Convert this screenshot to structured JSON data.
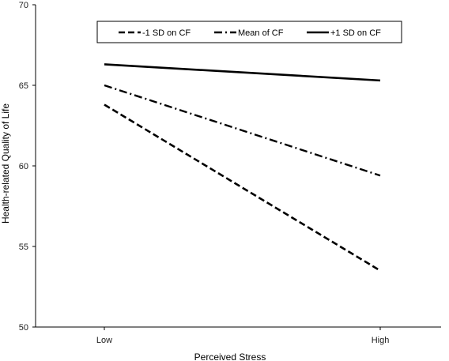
{
  "chart_data": {
    "type": "line",
    "title": "",
    "xlabel": "Perceived Stress",
    "ylabel": "Health-related Quality of Life",
    "categories": [
      "Low",
      "High"
    ],
    "ylim": [
      50,
      70
    ],
    "yticks": [
      50,
      55,
      60,
      65,
      70
    ],
    "grid": false,
    "legend_position": "top",
    "series": [
      {
        "name": "-1 SD on CF",
        "values": [
          63.8,
          53.5
        ],
        "style": "dashed",
        "color": "#000000"
      },
      {
        "name": "Mean of CF",
        "values": [
          65.0,
          59.4
        ],
        "style": "dash-dot",
        "color": "#000000"
      },
      {
        "name": "+1 SD on CF",
        "values": [
          66.3,
          65.3
        ],
        "style": "solid",
        "color": "#000000"
      }
    ]
  }
}
